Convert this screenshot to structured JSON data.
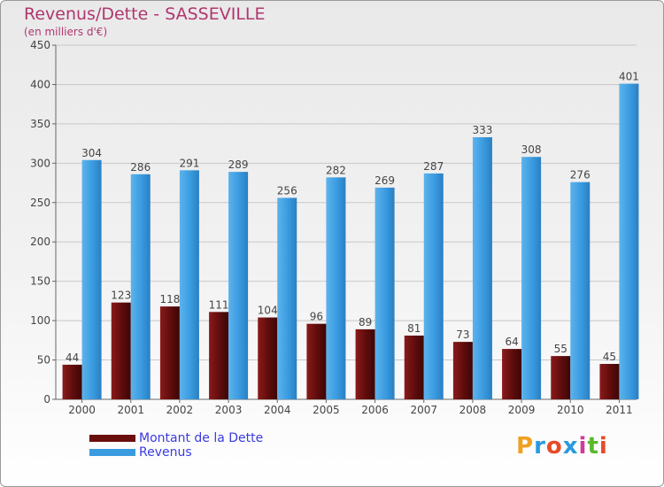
{
  "header": {
    "title": "Revenus/Dette - SASSEVILLE",
    "subtitle": "(en milliers d'€)"
  },
  "legend": {
    "items": [
      {
        "label": "Montant de la Dette",
        "color": "#6b0e0e"
      },
      {
        "label": "Revenus",
        "color": "#3a9be0"
      }
    ]
  },
  "brand": {
    "logo_text": "Proxiti"
  },
  "colors": {
    "debt": "#6b0e0e",
    "revenue": "#3a9be0",
    "title": "#b0366f",
    "legend_text": "#3a3ae0"
  },
  "chart_data": {
    "type": "bar",
    "title": "Revenus/Dette - SASSEVILLE",
    "subtitle": "(en milliers d'€)",
    "xlabel": "",
    "ylabel": "",
    "ylim": [
      0,
      450
    ],
    "yticks": [
      0,
      50,
      100,
      150,
      200,
      250,
      300,
      350,
      400,
      450
    ],
    "grid": true,
    "legend_position": "bottom-left",
    "categories": [
      "2000",
      "2001",
      "2002",
      "2003",
      "2004",
      "2005",
      "2006",
      "2007",
      "2008",
      "2009",
      "2010",
      "2011"
    ],
    "series": [
      {
        "name": "Montant de la Dette",
        "values": [
          44,
          123,
          118,
          111,
          104,
          96,
          89,
          81,
          73,
          64,
          55,
          45
        ]
      },
      {
        "name": "Revenus",
        "values": [
          304,
          286,
          291,
          289,
          256,
          282,
          269,
          287,
          333,
          308,
          276,
          401
        ]
      }
    ]
  }
}
